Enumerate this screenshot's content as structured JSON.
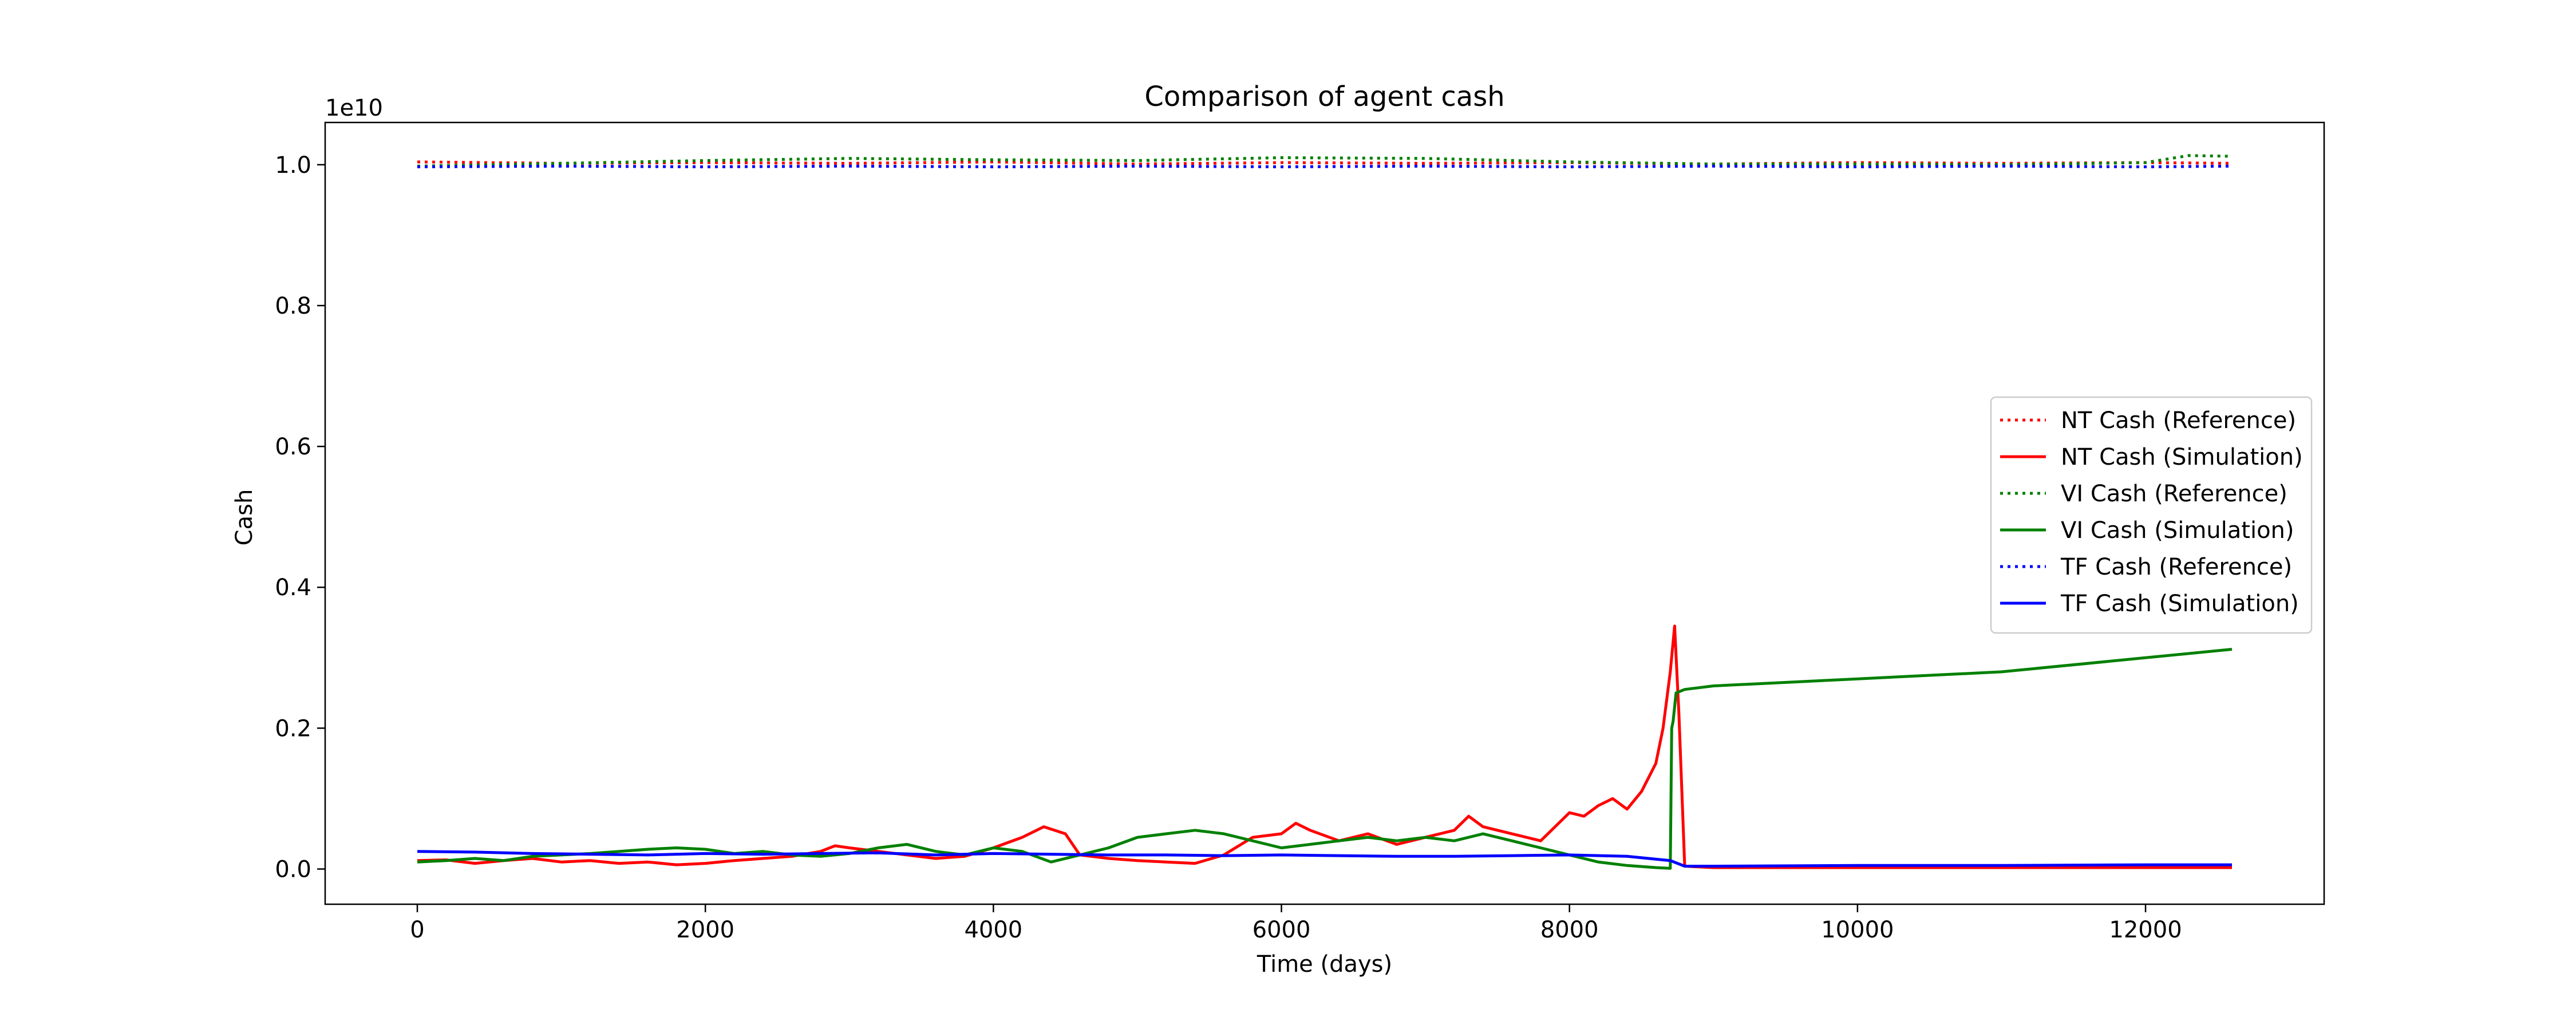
{
  "chart_data": {
    "type": "line",
    "title": "Comparison of agent cash",
    "xlabel": "Time (days)",
    "ylabel": "Cash",
    "y_scale_label": "1e10",
    "xlim": [
      -640,
      13240
    ],
    "ylim": [
      -0.05,
      1.06
    ],
    "x_ticks": [
      0,
      2000,
      4000,
      6000,
      8000,
      10000,
      12000
    ],
    "x_tick_labels": [
      "0",
      "2000",
      "4000",
      "6000",
      "8000",
      "10000",
      "12000"
    ],
    "y_ticks": [
      0.0,
      0.2,
      0.4,
      0.6,
      0.8,
      1.0
    ],
    "y_tick_labels": [
      "0.0",
      "0.2",
      "0.4",
      "0.6",
      "0.8",
      "1.0"
    ],
    "grid": false,
    "legend_position": "center-right",
    "series": [
      {
        "name": "NT Cash (Reference)",
        "color": "#ff0000",
        "style": "dotted",
        "x": [
          0,
          1000,
          2000,
          3000,
          4000,
          5000,
          6000,
          7000,
          8000,
          9000,
          10000,
          11000,
          12000,
          12600
        ],
        "y": [
          1.004,
          1.002,
          1.003,
          1.002,
          1.004,
          1.001,
          1.003,
          1.002,
          1.003,
          1.001,
          1.003,
          1.002,
          1.003,
          1.002
        ]
      },
      {
        "name": "NT Cash (Simulation)",
        "color": "#ff0000",
        "style": "solid",
        "x": [
          0,
          200,
          400,
          600,
          800,
          1000,
          1200,
          1400,
          1600,
          1800,
          2000,
          2200,
          2400,
          2600,
          2800,
          2900,
          3000,
          3200,
          3400,
          3600,
          3800,
          4000,
          4200,
          4350,
          4500,
          4600,
          4800,
          5000,
          5200,
          5400,
          5600,
          5800,
          6000,
          6100,
          6200,
          6400,
          6600,
          6800,
          7000,
          7200,
          7300,
          7400,
          7600,
          7800,
          7900,
          8000,
          8100,
          8200,
          8300,
          8400,
          8500,
          8600,
          8650,
          8700,
          8730,
          8760,
          8800,
          9000,
          10000,
          11000,
          12000,
          12600
        ],
        "y": [
          0.012,
          0.013,
          0.008,
          0.012,
          0.015,
          0.01,
          0.012,
          0.008,
          0.01,
          0.006,
          0.008,
          0.012,
          0.015,
          0.018,
          0.025,
          0.033,
          0.03,
          0.025,
          0.02,
          0.015,
          0.018,
          0.03,
          0.045,
          0.06,
          0.05,
          0.02,
          0.015,
          0.012,
          0.01,
          0.008,
          0.02,
          0.045,
          0.05,
          0.065,
          0.055,
          0.04,
          0.05,
          0.035,
          0.045,
          0.055,
          0.075,
          0.06,
          0.05,
          0.04,
          0.06,
          0.08,
          0.075,
          0.09,
          0.1,
          0.085,
          0.11,
          0.15,
          0.2,
          0.28,
          0.345,
          0.22,
          0.004,
          0.002,
          0.002,
          0.002,
          0.002,
          0.002
        ]
      },
      {
        "name": "VI Cash (Reference)",
        "color": "#008000",
        "style": "dotted",
        "x": [
          0,
          1000,
          2000,
          3000,
          4000,
          5000,
          6000,
          7000,
          8000,
          9000,
          10000,
          11000,
          12000,
          12300,
          12600
        ],
        "y": [
          0.998,
          1.002,
          1.006,
          1.009,
          1.007,
          1.006,
          1.01,
          1.009,
          1.004,
          1.001,
          1.001,
          1.0,
          1.003,
          1.013,
          1.012
        ]
      },
      {
        "name": "VI Cash (Simulation)",
        "color": "#008000",
        "style": "solid",
        "x": [
          0,
          200,
          400,
          600,
          800,
          1000,
          1200,
          1400,
          1600,
          1800,
          2000,
          2200,
          2400,
          2600,
          2800,
          3000,
          3200,
          3400,
          3600,
          3800,
          4000,
          4200,
          4400,
          4600,
          4800,
          5000,
          5200,
          5400,
          5600,
          5800,
          6000,
          6200,
          6400,
          6600,
          6800,
          7000,
          7200,
          7400,
          7600,
          7800,
          8000,
          8200,
          8400,
          8600,
          8700,
          8710,
          8720,
          8740,
          8800,
          9000,
          10000,
          11000,
          12000,
          12600
        ],
        "y": [
          0.01,
          0.012,
          0.015,
          0.012,
          0.018,
          0.02,
          0.022,
          0.025,
          0.028,
          0.03,
          0.028,
          0.022,
          0.025,
          0.02,
          0.018,
          0.022,
          0.03,
          0.035,
          0.025,
          0.02,
          0.03,
          0.025,
          0.01,
          0.02,
          0.03,
          0.045,
          0.05,
          0.055,
          0.05,
          0.04,
          0.03,
          0.035,
          0.04,
          0.045,
          0.04,
          0.045,
          0.04,
          0.05,
          0.04,
          0.03,
          0.02,
          0.01,
          0.005,
          0.002,
          0.001,
          0.2,
          0.21,
          0.25,
          0.255,
          0.26,
          0.27,
          0.28,
          0.3,
          0.312
        ]
      },
      {
        "name": "TF Cash (Reference)",
        "color": "#0000ff",
        "style": "dotted",
        "x": [
          0,
          1000,
          2000,
          3000,
          4000,
          5000,
          6000,
          7000,
          8000,
          9000,
          10000,
          11000,
          12000,
          12600
        ],
        "y": [
          0.997,
          0.998,
          0.997,
          0.998,
          0.997,
          0.998,
          0.997,
          0.998,
          0.997,
          0.998,
          0.997,
          0.998,
          0.997,
          0.998
        ]
      },
      {
        "name": "TF Cash (Simulation)",
        "color": "#0000ff",
        "style": "solid",
        "x": [
          0,
          400,
          800,
          1200,
          1600,
          2000,
          2400,
          2800,
          3200,
          3600,
          4000,
          4400,
          4800,
          5200,
          5600,
          6000,
          6400,
          6800,
          7200,
          7600,
          8000,
          8400,
          8700,
          8800,
          9000,
          10000,
          11000,
          12000,
          12600
        ],
        "y": [
          0.025,
          0.024,
          0.022,
          0.021,
          0.02,
          0.022,
          0.021,
          0.022,
          0.023,
          0.02,
          0.022,
          0.021,
          0.02,
          0.02,
          0.019,
          0.02,
          0.019,
          0.018,
          0.018,
          0.019,
          0.02,
          0.018,
          0.012,
          0.004,
          0.004,
          0.005,
          0.005,
          0.006,
          0.006
        ]
      }
    ]
  }
}
